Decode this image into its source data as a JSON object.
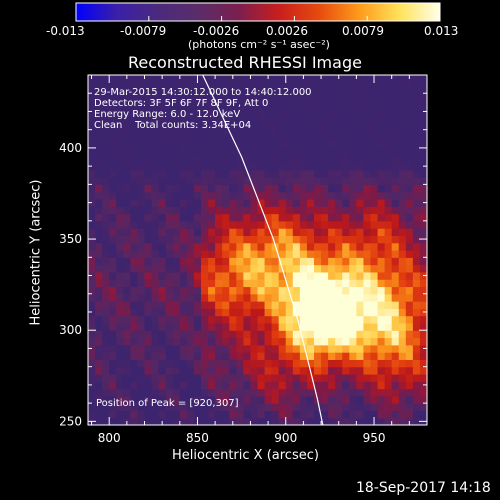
{
  "colorbar": {
    "ticks": [
      "-0.013",
      "-0.0079",
      "-0.0026",
      "0.0026",
      "0.0079",
      "0.013"
    ],
    "unit_label": "(photons cm⁻² s⁻¹ asec⁻²)",
    "colors": [
      "#0000ff",
      "#3b1fa8",
      "#4a2a7e",
      "#5a2d6a",
      "#7a1f50",
      "#c81e1e",
      "#e64a0f",
      "#ff9a1a",
      "#ffe25a",
      "#ffffe8"
    ]
  },
  "title": "Reconstructed RHESSI Image",
  "info": {
    "line1": "29-Mar-2015 14:30:12.000 to 14:40:12.000",
    "line2": "Detectors: 3F 5F 6F 7F 8F 9F, Att 0",
    "line3": "Energy Range: 6.0 - 12.0 keV",
    "line4": "Clean    Total counts: 3.34E+04"
  },
  "peak_label": "Position of Peak = [920,307]",
  "footer_date": "18-Sep-2017 14:18",
  "chart_data": {
    "type": "heatmap",
    "xlabel": "Heliocentric X (arcsec)",
    "ylabel": "Heliocentric Y (arcsec)",
    "xlim": [
      788,
      980
    ],
    "ylim": [
      248,
      440
    ],
    "xticks": [
      800,
      850,
      900,
      950
    ],
    "yticks": [
      250,
      300,
      350,
      400
    ],
    "peak": [
      920,
      307
    ],
    "sources": [
      {
        "x": 920,
        "y": 307,
        "intensity": 1.0
      },
      {
        "x": 955,
        "y": 302,
        "intensity": 0.5
      },
      {
        "x": 898,
        "y": 343,
        "intensity": 0.4
      },
      {
        "x": 870,
        "y": 332,
        "intensity": 0.35
      },
      {
        "x": 948,
        "y": 346,
        "intensity": 0.3
      },
      {
        "x": 965,
        "y": 274,
        "intensity": 0.22
      },
      {
        "x": 892,
        "y": 275,
        "intensity": 0.22
      }
    ],
    "limb": [
      [
        853,
        440
      ],
      [
        875,
        395
      ],
      [
        893,
        350
      ],
      [
        907,
        305
      ],
      [
        918,
        262
      ],
      [
        921,
        248
      ]
    ],
    "grid": false
  }
}
